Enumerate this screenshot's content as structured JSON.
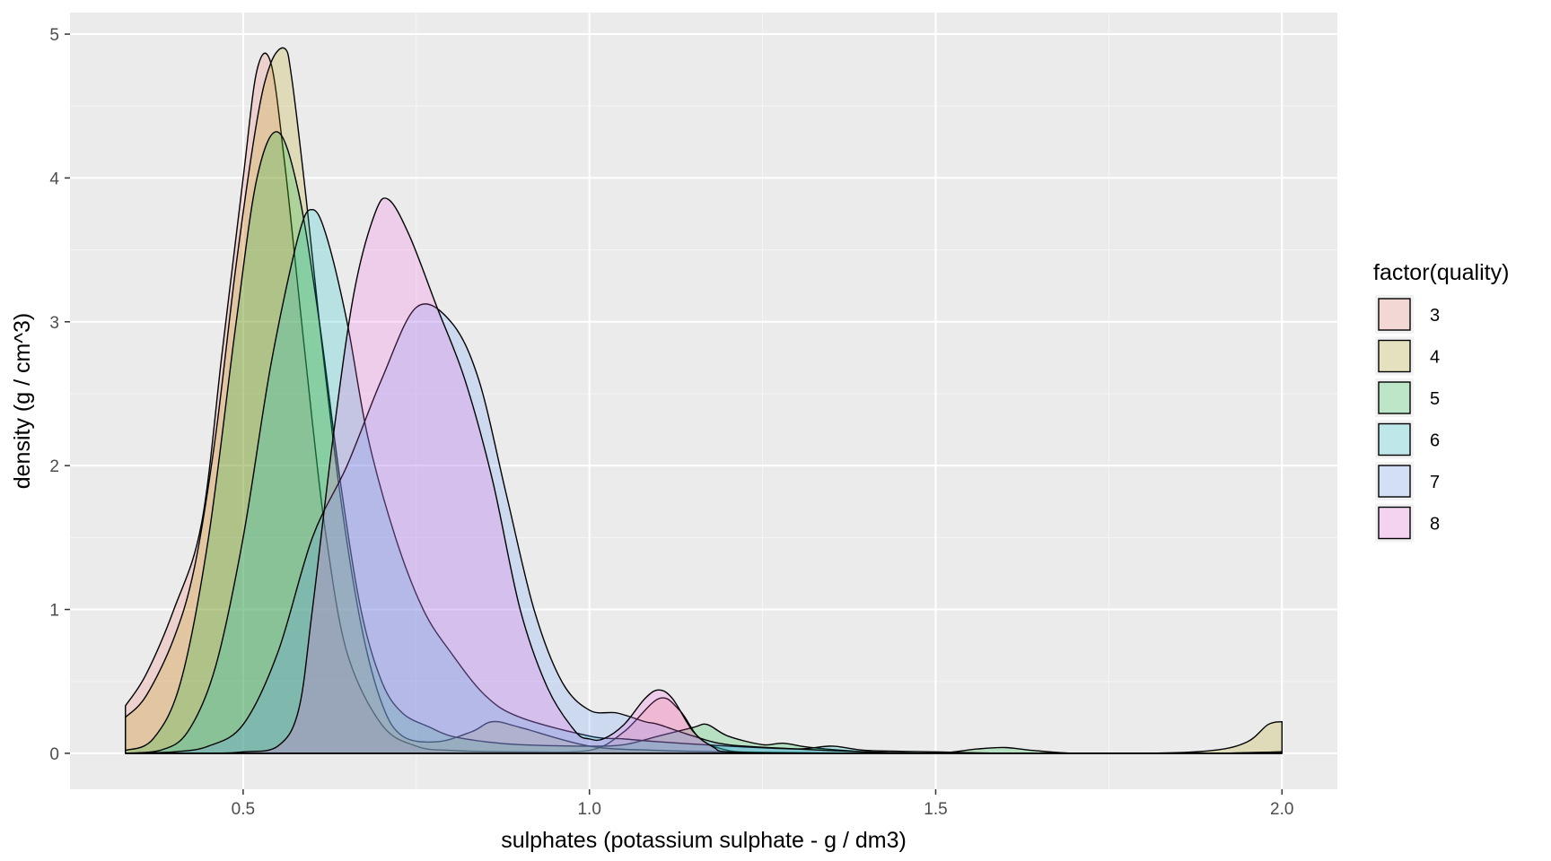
{
  "chart_data": {
    "type": "area",
    "subtype": "density",
    "title": "",
    "xlabel": "sulphates (potassium sulphate - g / dm3)",
    "ylabel": "density (g / cm^3)",
    "xlim": [
      0.25,
      2.08
    ],
    "ylim": [
      -0.25,
      5.15
    ],
    "xticks": [
      0.5,
      1.0,
      1.5,
      2.0
    ],
    "xtick_labels": [
      "0.5",
      "1.0",
      "1.5",
      "2.0"
    ],
    "yticks": [
      0,
      1,
      2,
      3,
      4,
      5
    ],
    "ytick_labels": [
      "0",
      "1",
      "2",
      "3",
      "4",
      "5"
    ],
    "grid": true,
    "fill_opacity": 0.22,
    "legend": {
      "title": "factor(quality)",
      "position": "right"
    },
    "series": [
      {
        "name": "3",
        "color": "#F8766D",
        "x": [
          0.33,
          0.36,
          0.4,
          0.44,
          0.47,
          0.5,
          0.52,
          0.54,
          0.56,
          0.58,
          0.6,
          0.62,
          0.65,
          0.7,
          0.75,
          0.8,
          0.9,
          1.0,
          1.05,
          1.1,
          1.13,
          1.16,
          1.2,
          1.25
        ],
        "y": [
          0.33,
          0.55,
          1.0,
          1.6,
          2.8,
          4.0,
          4.75,
          4.8,
          4.1,
          3.2,
          2.3,
          1.5,
          0.7,
          0.2,
          0.05,
          0.02,
          0.01,
          0.02,
          0.15,
          0.38,
          0.3,
          0.1,
          0.02,
          0.0
        ]
      },
      {
        "name": "4",
        "color": "#B79F00",
        "x": [
          0.33,
          0.36,
          0.4,
          0.43,
          0.46,
          0.49,
          0.52,
          0.54,
          0.56,
          0.57,
          0.59,
          0.61,
          0.64,
          0.67,
          0.7,
          0.73,
          0.78,
          0.83,
          0.86,
          0.9,
          1.0,
          1.1,
          1.2,
          1.4,
          1.6,
          1.8,
          1.9,
          1.95,
          1.98,
          2.0
        ],
        "y": [
          0.25,
          0.4,
          0.8,
          1.3,
          2.2,
          3.4,
          4.4,
          4.8,
          4.9,
          4.7,
          3.9,
          3.0,
          1.8,
          0.9,
          0.35,
          0.12,
          0.08,
          0.15,
          0.22,
          0.18,
          0.05,
          0.02,
          0.01,
          0.0,
          0.0,
          0.0,
          0.02,
          0.08,
          0.2,
          0.22
        ]
      },
      {
        "name": "5",
        "color": "#00BA38",
        "x": [
          0.33,
          0.37,
          0.41,
          0.45,
          0.49,
          0.52,
          0.55,
          0.58,
          0.61,
          0.64,
          0.67,
          0.7,
          0.73,
          0.77,
          0.8,
          0.85,
          0.9,
          1.0,
          1.05,
          1.1,
          1.15,
          1.17,
          1.2,
          1.25,
          1.28,
          1.32,
          1.4,
          1.5,
          1.56,
          1.6,
          1.64,
          1.7,
          1.8,
          1.9,
          2.0
        ],
        "y": [
          0.02,
          0.1,
          0.5,
          1.5,
          3.0,
          4.0,
          4.32,
          3.9,
          3.0,
          1.9,
          1.0,
          0.5,
          0.28,
          0.18,
          0.12,
          0.08,
          0.06,
          0.05,
          0.06,
          0.12,
          0.18,
          0.2,
          0.12,
          0.06,
          0.07,
          0.04,
          0.01,
          0.0,
          0.03,
          0.04,
          0.02,
          0.0,
          0.0,
          0.0,
          0.01
        ]
      },
      {
        "name": "6",
        "color": "#00BFC4",
        "x": [
          0.33,
          0.38,
          0.42,
          0.46,
          0.5,
          0.54,
          0.58,
          0.6,
          0.62,
          0.65,
          0.68,
          0.72,
          0.76,
          0.8,
          0.85,
          0.9,
          1.0,
          1.05,
          1.1,
          1.2,
          1.3,
          1.35,
          1.4,
          1.5,
          1.6,
          1.7,
          1.8,
          1.9,
          2.0
        ],
        "y": [
          0.0,
          0.02,
          0.15,
          0.6,
          1.5,
          2.7,
          3.6,
          3.78,
          3.6,
          3.0,
          2.2,
          1.5,
          1.0,
          0.7,
          0.4,
          0.25,
          0.12,
          0.1,
          0.08,
          0.05,
          0.03,
          0.05,
          0.02,
          0.01,
          0.0,
          0.0,
          0.0,
          0.0,
          0.01
        ]
      },
      {
        "name": "7",
        "color": "#619CFF",
        "x": [
          0.33,
          0.4,
          0.45,
          0.5,
          0.55,
          0.6,
          0.65,
          0.7,
          0.75,
          0.8,
          0.84,
          0.88,
          0.92,
          0.96,
          1.0,
          1.04,
          1.08,
          1.1,
          1.15,
          1.2,
          1.3,
          1.4,
          1.5,
          1.6,
          1.8,
          2.0
        ],
        "y": [
          0.0,
          0.01,
          0.05,
          0.2,
          0.7,
          1.5,
          2.0,
          2.6,
          3.1,
          3.0,
          2.6,
          1.8,
          1.0,
          0.5,
          0.3,
          0.28,
          0.22,
          0.2,
          0.12,
          0.06,
          0.03,
          0.01,
          0.0,
          0.0,
          0.0,
          0.0
        ]
      },
      {
        "name": "8",
        "color": "#F564E3",
        "x": [
          0.33,
          0.45,
          0.5,
          0.55,
          0.58,
          0.6,
          0.63,
          0.66,
          0.69,
          0.71,
          0.74,
          0.78,
          0.82,
          0.86,
          0.9,
          0.94,
          0.98,
          1.0,
          1.02,
          1.05,
          1.08,
          1.1,
          1.12,
          1.15,
          1.18,
          1.2,
          1.3,
          1.5,
          2.0
        ],
        "y": [
          0.0,
          0.0,
          0.01,
          0.05,
          0.3,
          1.0,
          2.2,
          3.2,
          3.75,
          3.85,
          3.6,
          3.1,
          2.6,
          1.9,
          1.0,
          0.45,
          0.15,
          0.1,
          0.1,
          0.2,
          0.38,
          0.44,
          0.38,
          0.15,
          0.04,
          0.01,
          0.0,
          0.0,
          0.0
        ]
      }
    ]
  }
}
